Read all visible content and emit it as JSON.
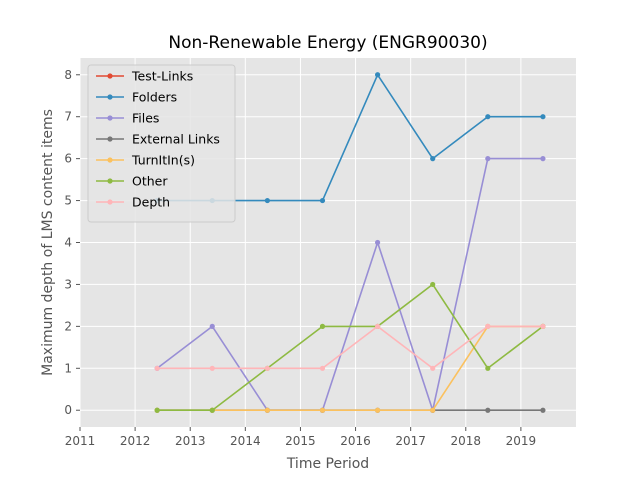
{
  "chart_data": {
    "type": "line",
    "title": "Non-Renewable Energy (ENGR90030)",
    "xlabel": "Time Period",
    "ylabel": "Maximum depth of LMS content items",
    "xlim": [
      2011,
      2020
    ],
    "ylim": [
      -0.4,
      8.4
    ],
    "xticks": [
      "2011",
      "2012",
      "2013",
      "2014",
      "2015",
      "2016",
      "2017",
      "2018",
      "2019"
    ],
    "yticks": [
      "0",
      "1",
      "2",
      "3",
      "4",
      "5",
      "6",
      "7",
      "8"
    ],
    "x": [
      2012.4,
      2013.4,
      2014.4,
      2015.4,
      2016.4,
      2017.4,
      2018.4,
      2019.4
    ],
    "grid": true,
    "legend_position": "top-left",
    "series": [
      {
        "name": "Test-Links",
        "color": "#e24a33",
        "values": [
          null,
          null,
          null,
          null,
          null,
          null,
          null,
          null
        ]
      },
      {
        "name": "Folders",
        "color": "#348abd",
        "values": [
          5,
          5,
          5,
          5,
          8,
          6,
          7,
          7
        ]
      },
      {
        "name": "Files",
        "color": "#988ed5",
        "values": [
          1,
          2,
          0,
          0,
          4,
          0,
          6,
          6
        ]
      },
      {
        "name": "External Links",
        "color": "#777777",
        "values": [
          0,
          0,
          0,
          0,
          0,
          0,
          0,
          0
        ]
      },
      {
        "name": "TurnItIn(s)",
        "color": "#fbc15e",
        "values": [
          0,
          0,
          0,
          0,
          0,
          0,
          2,
          2
        ]
      },
      {
        "name": "Other",
        "color": "#8eba42",
        "values": [
          0,
          0,
          1,
          2,
          2,
          3,
          1,
          2
        ]
      },
      {
        "name": "Depth",
        "color": "#ffb5b8",
        "values": [
          1,
          1,
          1,
          1,
          2,
          1,
          2,
          2
        ]
      }
    ]
  }
}
